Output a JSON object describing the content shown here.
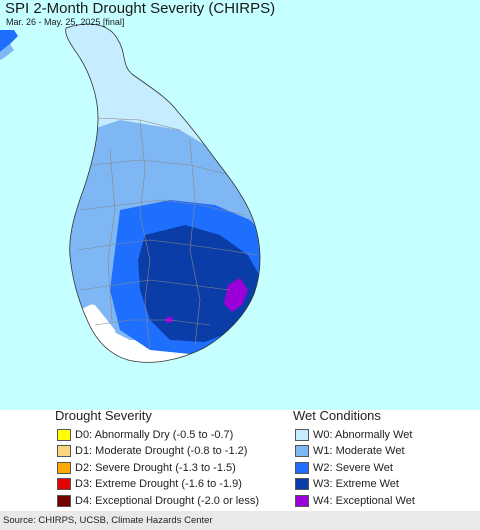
{
  "header": {
    "title": "SPI 2-Month Drought Severity (CHIRPS)",
    "subtitle": "Mar. 26 - May. 25, 2025 [final]"
  },
  "legend": {
    "drought": {
      "heading": "Drought Severity",
      "items": [
        {
          "label": "D0: Abnormally Dry (-0.5 to -0.7)",
          "color": "#ffff00"
        },
        {
          "label": "D1: Moderate Drought (-0.8 to -1.2)",
          "color": "#fcd37f"
        },
        {
          "label": "D2: Severe Drought (-1.3 to -1.5)",
          "color": "#ffaa00"
        },
        {
          "label": "D3: Extreme Drought (-1.6 to -1.9)",
          "color": "#e60000"
        },
        {
          "label": "D4: Exceptional Drought (-2.0 or less)",
          "color": "#730000"
        }
      ]
    },
    "wet": {
      "heading": "Wet Conditions",
      "items": [
        {
          "label": "W0: Abnormally Wet",
          "color": "#c6ecff"
        },
        {
          "label": "W1: Moderate Wet",
          "color": "#7fb7f5"
        },
        {
          "label": "W2: Severe Wet",
          "color": "#1f6fff"
        },
        {
          "label": "W3: Extreme Wet",
          "color": "#0b3da8"
        },
        {
          "label": "W4: Exceptional Wet",
          "color": "#9b00d8"
        }
      ]
    }
  },
  "map": {
    "ocean_color": "#c6ffff",
    "land_no_data_color": "#ffffff",
    "boundary_color": "#888888"
  },
  "footer": {
    "source": "Source: CHIRPS, UCSB, Climate Hazards Center"
  }
}
